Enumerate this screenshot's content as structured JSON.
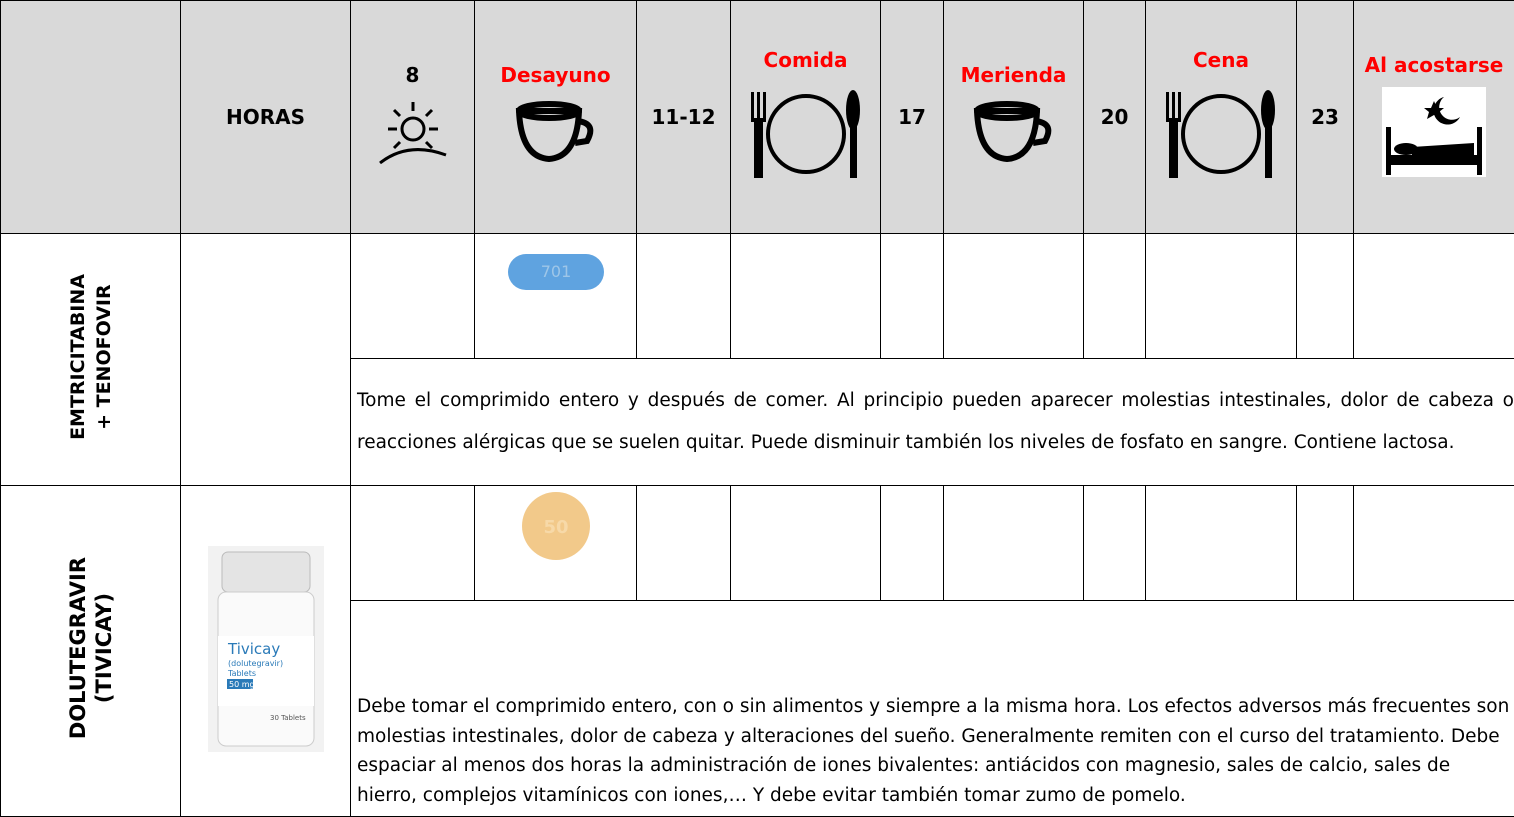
{
  "header": {
    "col_label": "HORAS",
    "times": [
      "8",
      "Desayuno",
      "11-12",
      "Comida",
      "17",
      "Merienda",
      "20",
      "Cena",
      "23",
      "Al acostarse"
    ]
  },
  "rows": [
    {
      "drug": [
        "EMTRICITABINA",
        "+ TENOFOVIR"
      ],
      "pill_imprint": "701",
      "note": "Tome el comprimido entero y después de comer. Al principio pueden aparecer molestias intestinales, dolor de cabeza o reacciones alérgicas que se suelen quitar. Puede disminuir también los niveles de fosfato en sangre. Contiene lactosa."
    },
    {
      "drug": [
        "DOLUTEGRAVIR",
        "(TIVICAY)"
      ],
      "pill_imprint": "50",
      "bottle": {
        "brand": "Tivicay",
        "generic": "(dolutegravir)",
        "form": "Tablets",
        "strength": "50 mg",
        "count": "30 Tablets"
      },
      "note": "Debe tomar el comprimido entero, con o sin alimentos y siempre a la misma hora. Los efectos adversos más frecuentes son molestias intestinales, dolor de cabeza y alteraciones del sueño. Generalmente remiten con el curso del tratamiento. Debe espaciar al menos dos horas la administración de iones bivalentes: antiácidos con magnesio, sales de calcio, sales de hierro, complejos vitamínicos con iones,… Y debe evitar también tomar zumo de pomelo."
    }
  ]
}
